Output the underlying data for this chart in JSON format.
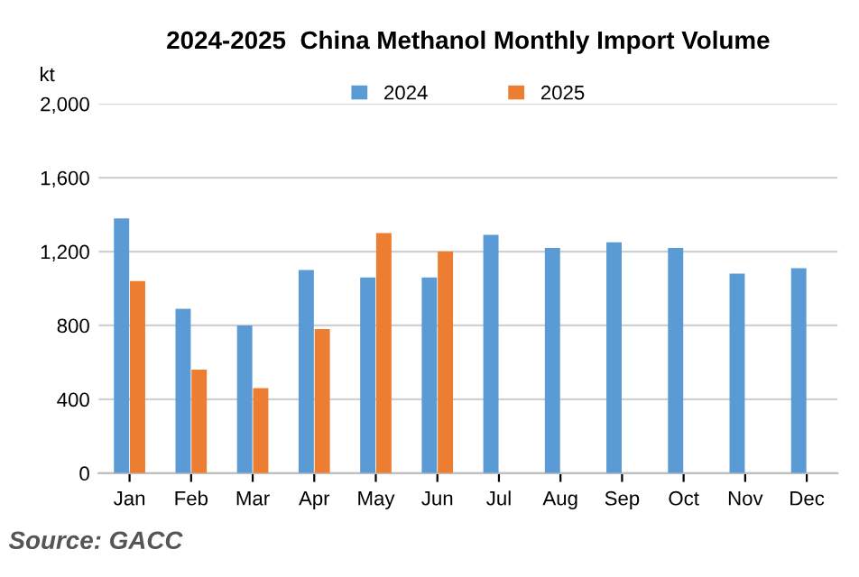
{
  "chart_data": {
    "type": "bar",
    "title": "2024-2025  China Methanol Monthly Import Volume",
    "ylabel": "kt",
    "categories": [
      "Jan",
      "Feb",
      "Mar",
      "Apr",
      "May",
      "Jun",
      "Jul",
      "Aug",
      "Sep",
      "Oct",
      "Nov",
      "Dec"
    ],
    "series": [
      {
        "name": "2024",
        "color": "#5b9bd5",
        "values": [
          1380,
          890,
          800,
          1100,
          1060,
          1060,
          1290,
          1220,
          1250,
          1220,
          1080,
          1110
        ]
      },
      {
        "name": "2025",
        "color": "#ed7d31",
        "values": [
          1040,
          560,
          460,
          780,
          1300,
          1200,
          null,
          null,
          null,
          null,
          null,
          null
        ]
      }
    ],
    "ylim": [
      0,
      2000
    ],
    "yticks": [
      {
        "value": 0,
        "label": "0"
      },
      {
        "value": 400,
        "label": "400"
      },
      {
        "value": 800,
        "label": "800"
      },
      {
        "value": 1200,
        "label": "1,200"
      },
      {
        "value": 1600,
        "label": "1,600"
      },
      {
        "value": 2000,
        "label": "2,000"
      }
    ],
    "grid": "y",
    "legend": "top",
    "annotations": [
      "Source: GACC"
    ]
  }
}
